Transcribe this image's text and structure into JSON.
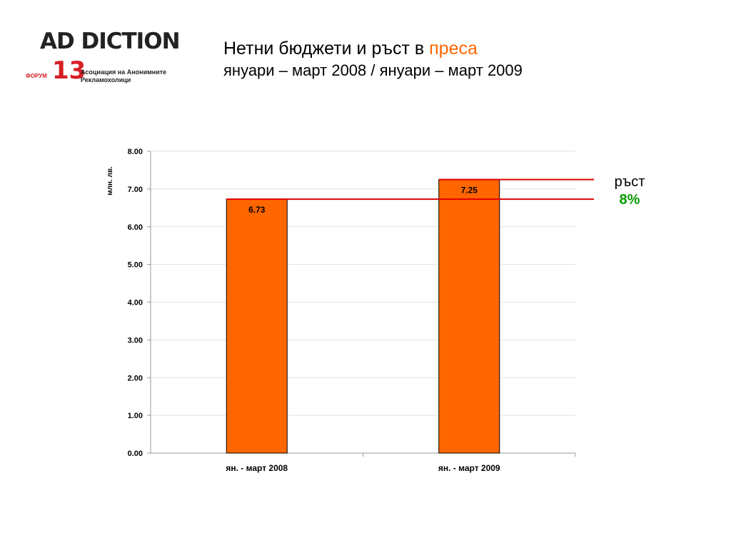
{
  "logo": {
    "word": "AD DICTION",
    "forum": "ФОРУМ",
    "number": "13",
    "sub_line1": "Асоциация на Анонимните",
    "sub_line2": "Рекламохолици"
  },
  "title": {
    "prefix": "Нетни бюджети и ръст в ",
    "highlight": "преса",
    "period": "януари – март 2008 / януари – март 2009"
  },
  "growth": {
    "label": "ръст",
    "value": "8%"
  },
  "colors": {
    "bar": "#ff6600",
    "reference_line": "#e00000",
    "highlight": "#ff6600",
    "growth_value": "#0a9a00"
  },
  "chart_data": {
    "type": "bar",
    "categories": [
      "ян. - март 2008",
      "ян. - март 2009"
    ],
    "values": [
      6.73,
      7.25
    ],
    "data_labels": [
      "6.73",
      "7.25"
    ],
    "ylabel": "млн. лв.",
    "ylim": [
      0,
      8
    ],
    "yticks": [
      "0.00",
      "1.00",
      "2.00",
      "3.00",
      "4.00",
      "5.00",
      "6.00",
      "7.00",
      "8.00"
    ],
    "grid": true,
    "reference_lines": [
      6.73,
      7.25
    ]
  }
}
